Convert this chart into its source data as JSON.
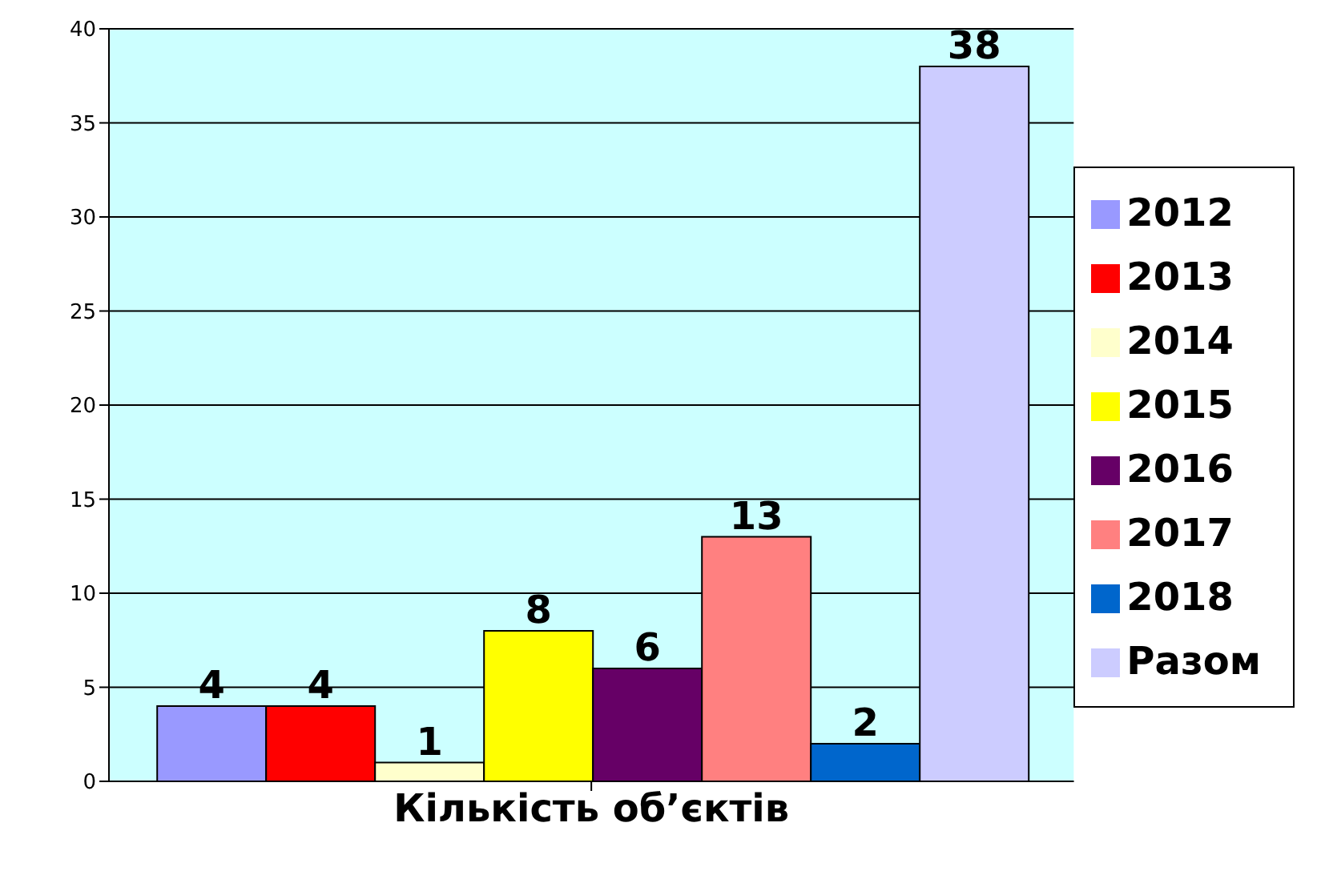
{
  "chart_data": {
    "type": "bar",
    "categories": [
      "Кількість об’єктів"
    ],
    "series": [
      {
        "name": "2012",
        "color": "#9999ff",
        "values": [
          4
        ]
      },
      {
        "name": "2013",
        "color": "#ff0000",
        "values": [
          4
        ]
      },
      {
        "name": "2014",
        "color": "#ffffcc",
        "values": [
          1
        ]
      },
      {
        "name": "2015",
        "color": "#ffff00",
        "values": [
          8
        ]
      },
      {
        "name": "2016",
        "color": "#660066",
        "values": [
          6
        ]
      },
      {
        "name": "2017",
        "color": "#ff8080",
        "values": [
          13
        ]
      },
      {
        "name": "2018",
        "color": "#0066cc",
        "values": [
          2
        ]
      },
      {
        "name": "Разом",
        "color": "#ccccff",
        "values": [
          38
        ]
      }
    ],
    "ylim": [
      0,
      40
    ],
    "yticks": [
      0,
      5,
      10,
      15,
      20,
      25,
      30,
      35,
      40
    ],
    "grid": "y",
    "legend": "right",
    "data_labels": true
  }
}
